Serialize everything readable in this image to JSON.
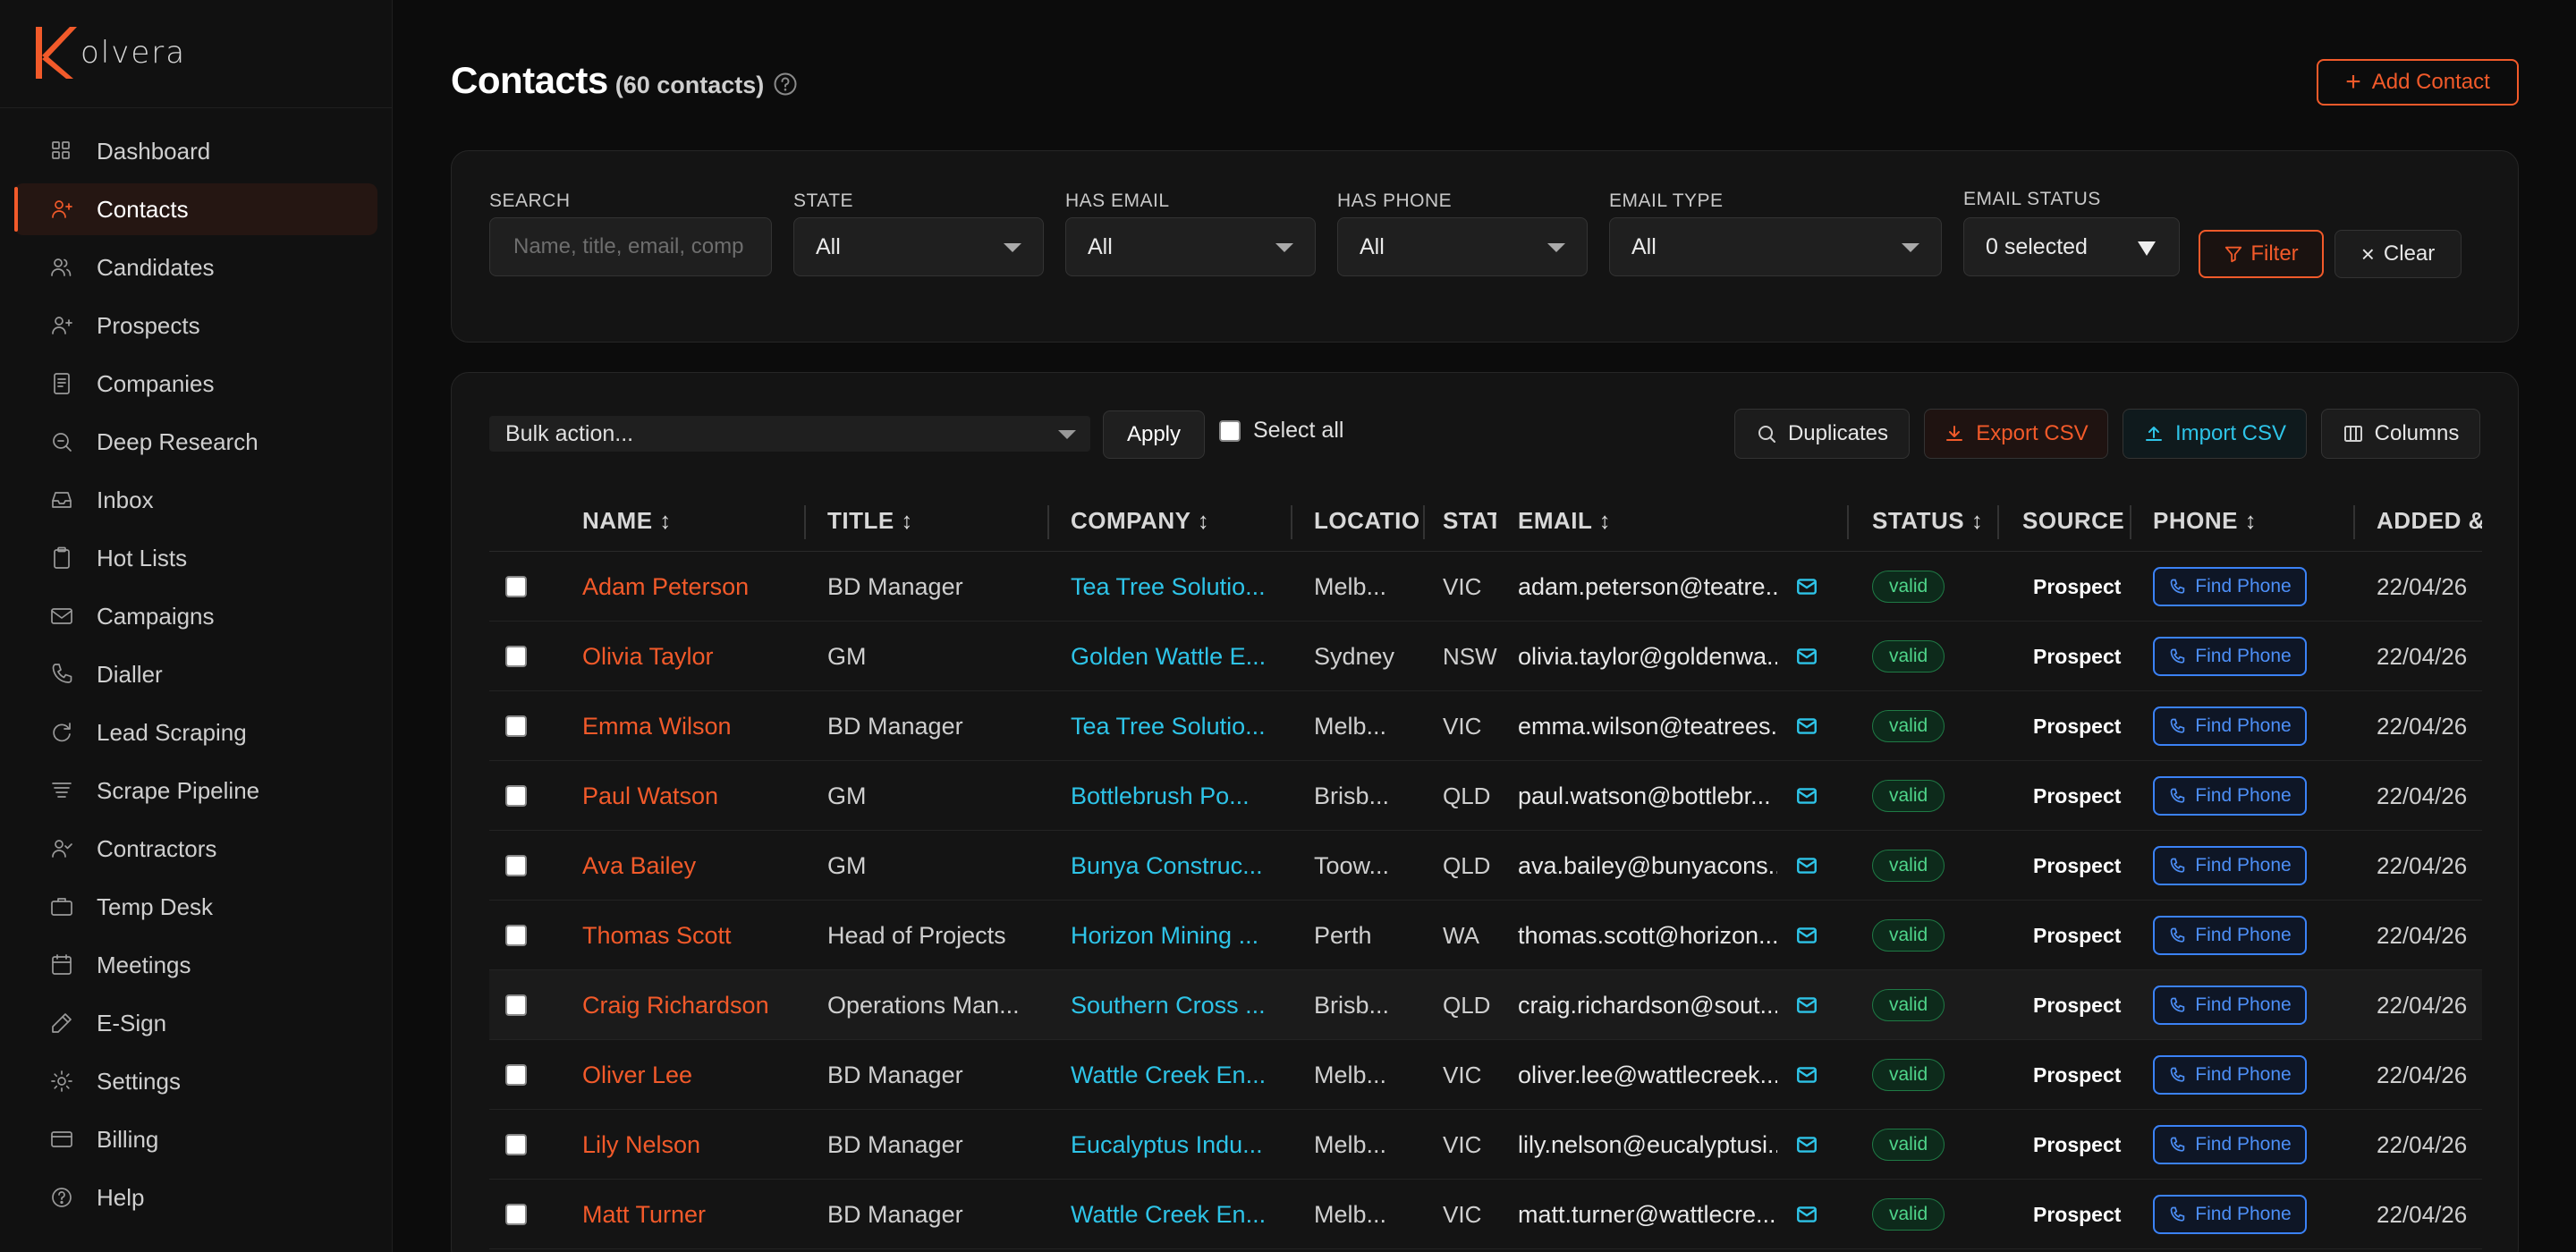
{
  "brand": {
    "name": "olvera",
    "accent": "#f25a2a"
  },
  "sidebar": {
    "items": [
      {
        "label": "Dashboard",
        "icon": "grid-icon"
      },
      {
        "label": "Contacts",
        "icon": "user-plus-icon",
        "active": true
      },
      {
        "label": "Candidates",
        "icon": "users-icon"
      },
      {
        "label": "Prospects",
        "icon": "user-plus-icon"
      },
      {
        "label": "Companies",
        "icon": "document-icon"
      },
      {
        "label": "Deep Research",
        "icon": "search-icon"
      },
      {
        "label": "Inbox",
        "icon": "inbox-icon"
      },
      {
        "label": "Hot Lists",
        "icon": "clipboard-icon"
      },
      {
        "label": "Campaigns",
        "icon": "mail-icon"
      },
      {
        "label": "Dialler",
        "icon": "phone-icon"
      },
      {
        "label": "Lead Scraping",
        "icon": "refresh-icon"
      },
      {
        "label": "Scrape Pipeline",
        "icon": "layers-icon"
      },
      {
        "label": "Contractors",
        "icon": "user-check-icon"
      },
      {
        "label": "Temp Desk",
        "icon": "briefcase-icon"
      },
      {
        "label": "Meetings",
        "icon": "calendar-icon"
      },
      {
        "label": "E-Sign",
        "icon": "pen-icon"
      },
      {
        "label": "Settings",
        "icon": "gear-icon"
      },
      {
        "label": "Billing",
        "icon": "credit-card-icon"
      },
      {
        "label": "Help",
        "icon": "help-icon"
      }
    ]
  },
  "header": {
    "title": "Contacts",
    "count": "(60 contacts)",
    "add_label": "Add Contact"
  },
  "filters": {
    "search": {
      "label": "SEARCH",
      "placeholder": "Name, title, email, comp"
    },
    "state": {
      "label": "STATE",
      "value": "All"
    },
    "has_email": {
      "label": "HAS EMAIL",
      "value": "All"
    },
    "has_phone": {
      "label": "HAS PHONE",
      "value": "All"
    },
    "email_type": {
      "label": "EMAIL TYPE",
      "value": "All"
    },
    "email_status": {
      "label": "EMAIL STATUS",
      "value": "0 selected"
    },
    "filter_label": "Filter",
    "clear_label": "Clear"
  },
  "toolbar": {
    "bulk_action": "Bulk action...",
    "apply": "Apply",
    "select_all": "Select all",
    "duplicates": "Duplicates",
    "export_csv": "Export CSV",
    "import_csv": "Import CSV",
    "columns": "Columns"
  },
  "table": {
    "columns": [
      "NAME ↕",
      "TITLE ↕",
      "COMPANY ↕",
      "LOCATIO",
      "STAT",
      "EMAIL ↕",
      "STATUS ↕",
      "SOURCE",
      "PHONE ↕",
      "ADDED &"
    ],
    "find_phone": "Find Phone",
    "rows": [
      {
        "name": "Adam Peterson",
        "title": "BD Manager",
        "company": "Tea Tree Solutio...",
        "location": "Melb...",
        "state": "VIC",
        "email": "adam.peterson@teatre...",
        "status": "valid",
        "source": "Prospect S",
        "added": "22/04/26"
      },
      {
        "name": "Olivia Taylor",
        "title": "GM",
        "company": "Golden Wattle E...",
        "location": "Sydney",
        "state": "NSW",
        "email": "olivia.taylor@goldenwa...",
        "status": "valid",
        "source": "Prospect S",
        "added": "22/04/26"
      },
      {
        "name": "Emma Wilson",
        "title": "BD Manager",
        "company": "Tea Tree Solutio...",
        "location": "Melb...",
        "state": "VIC",
        "email": "emma.wilson@teatrees...",
        "status": "valid",
        "source": "Prospect S",
        "added": "22/04/26"
      },
      {
        "name": "Paul Watson",
        "title": "GM",
        "company": "Bottlebrush Po...",
        "location": "Brisb...",
        "state": "QLD",
        "email": "paul.watson@bottlebr...",
        "status": "valid",
        "source": "Prospect S",
        "added": "22/04/26"
      },
      {
        "name": "Ava Bailey",
        "title": "GM",
        "company": "Bunya Construc...",
        "location": "Toow...",
        "state": "QLD",
        "email": "ava.bailey@bunyacons...",
        "status": "valid",
        "source": "Prospect S",
        "added": "22/04/26"
      },
      {
        "name": "Thomas Scott",
        "title": "Head of Projects",
        "company": "Horizon Mining ...",
        "location": "Perth",
        "state": "WA",
        "email": "thomas.scott@horizon...",
        "status": "valid",
        "source": "Prospect S",
        "added": "22/04/26"
      },
      {
        "name": "Craig Richardson",
        "title": "Operations Man...",
        "company": "Southern Cross ...",
        "location": "Brisb...",
        "state": "QLD",
        "email": "craig.richardson@sout...",
        "status": "valid",
        "source": "Prospect S",
        "added": "22/04/26"
      },
      {
        "name": "Oliver Lee",
        "title": "BD Manager",
        "company": "Wattle Creek En...",
        "location": "Melb...",
        "state": "VIC",
        "email": "oliver.lee@wattlecreek...",
        "status": "valid",
        "source": "Prospect S",
        "added": "22/04/26"
      },
      {
        "name": "Lily Nelson",
        "title": "BD Manager",
        "company": "Eucalyptus Indu...",
        "location": "Melb...",
        "state": "VIC",
        "email": "lily.nelson@eucalyptusi...",
        "status": "valid",
        "source": "Prospect S",
        "added": "22/04/26"
      },
      {
        "name": "Matt Turner",
        "title": "BD Manager",
        "company": "Wattle Creek En...",
        "location": "Melb...",
        "state": "VIC",
        "email": "matt.turner@wattlecre...",
        "status": "valid",
        "source": "Prospect S",
        "added": "22/04/26"
      }
    ]
  }
}
